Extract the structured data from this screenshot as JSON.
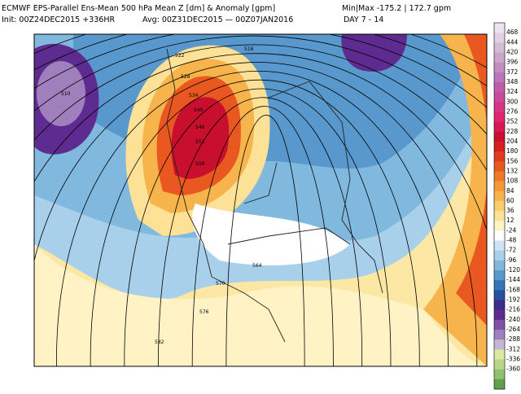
{
  "header": {
    "title": "ECMWF EPS-Parallel Ens-Mean 500 hPa Mean Z [dm] & Anomaly [gpm]",
    "minmax": "Min|Max -175.2 | 172.7 gpm",
    "init": "Init: 00Z24DEC2015 +336HR",
    "avg": "Avg: 00Z31DEC2015 — 00Z07JAN2016",
    "day": "DAY 7 - 14"
  },
  "colorbar": {
    "labels": [
      468,
      444,
      420,
      396,
      372,
      348,
      324,
      300,
      276,
      252,
      228,
      204,
      180,
      156,
      132,
      108,
      84,
      60,
      36,
      12,
      -24,
      -48,
      -72,
      -96,
      -120,
      -144,
      -168,
      -192,
      -216,
      -240,
      -264,
      -288,
      -312,
      -336,
      -360
    ],
    "colors": [
      "#ece4ee",
      "#e0d0e2",
      "#d4bcd6",
      "#caa6cc",
      "#c28ec2",
      "#ba76b8",
      "#c05ca8",
      "#ca4898",
      "#d83684",
      "#e0266e",
      "#d81852",
      "#c8102e",
      "#d22020",
      "#de3a1e",
      "#e85820",
      "#f07828",
      "#f59838",
      "#f8b44c",
      "#facc6c",
      "#fce196",
      "#fff3c6",
      "#ffffff",
      "#cfe4f2",
      "#a8d0ea",
      "#80b8de",
      "#5898cc",
      "#3476b8",
      "#2452a0",
      "#3c2c8c",
      "#5e2c90",
      "#7e50a6",
      "#a080bc",
      "#c4b6d6",
      "#dce8a0",
      "#b8d888",
      "#90c070",
      "#5ea050"
    ]
  },
  "contours": [
    510,
    516,
    522,
    528,
    534,
    540,
    546,
    552,
    558,
    564,
    570,
    576,
    582
  ]
}
